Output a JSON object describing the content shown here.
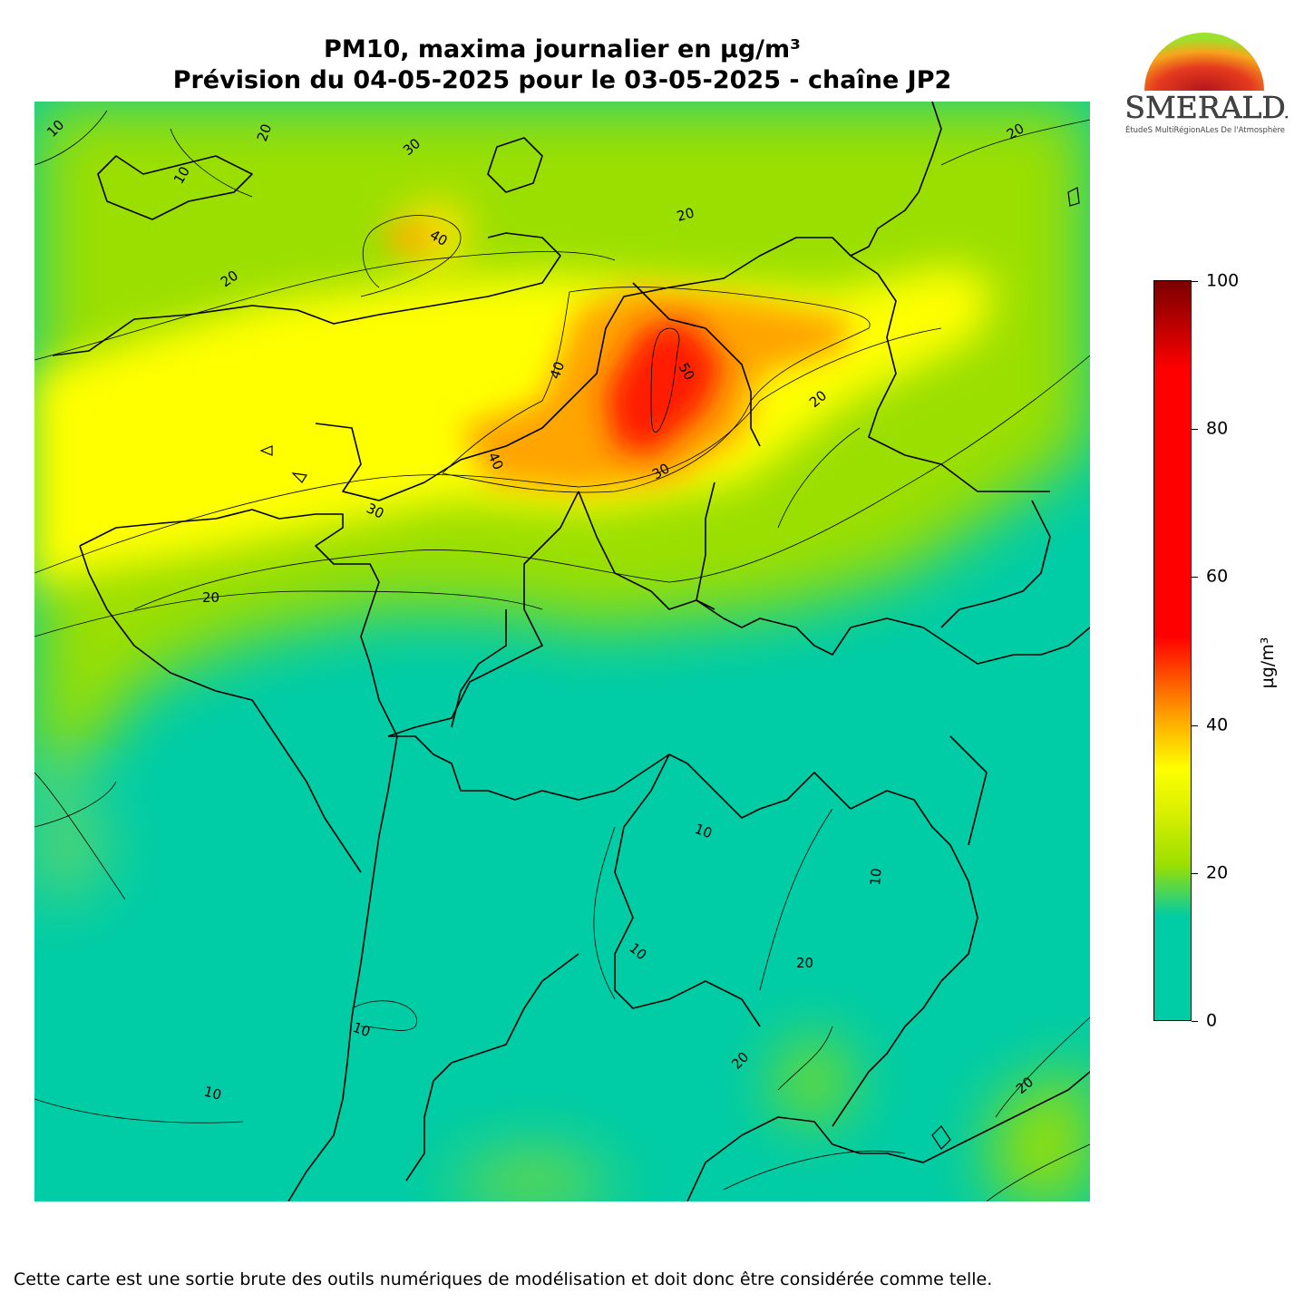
{
  "title": {
    "line1": "PM10, maxima journalier en µg/m³",
    "line2": "Prévision du 04-05-2025 pour le 03-05-2025 - chaîne JP2"
  },
  "logo": {
    "text": "ESMERALDA",
    "tagline": "ÉtudeS MultiRégionALes De l'Atmosphère"
  },
  "colorbar": {
    "unit": "µg/m³",
    "min": 0,
    "max": 100,
    "ticks": [
      "0",
      "20",
      "40",
      "60",
      "80",
      "100"
    ],
    "colors": [
      "#00cca6",
      "#00cca6",
      "#9bdf00",
      "#ffff00",
      "#ffa400",
      "#ff0000",
      "#ff0000",
      "#7a0000"
    ]
  },
  "contour_labels": [
    "10",
    "20",
    "30",
    "40",
    "50"
  ],
  "disclaimer": "Cette carte est une sortie brute des outils numériques de modélisation et doit donc être considérée comme telle."
}
